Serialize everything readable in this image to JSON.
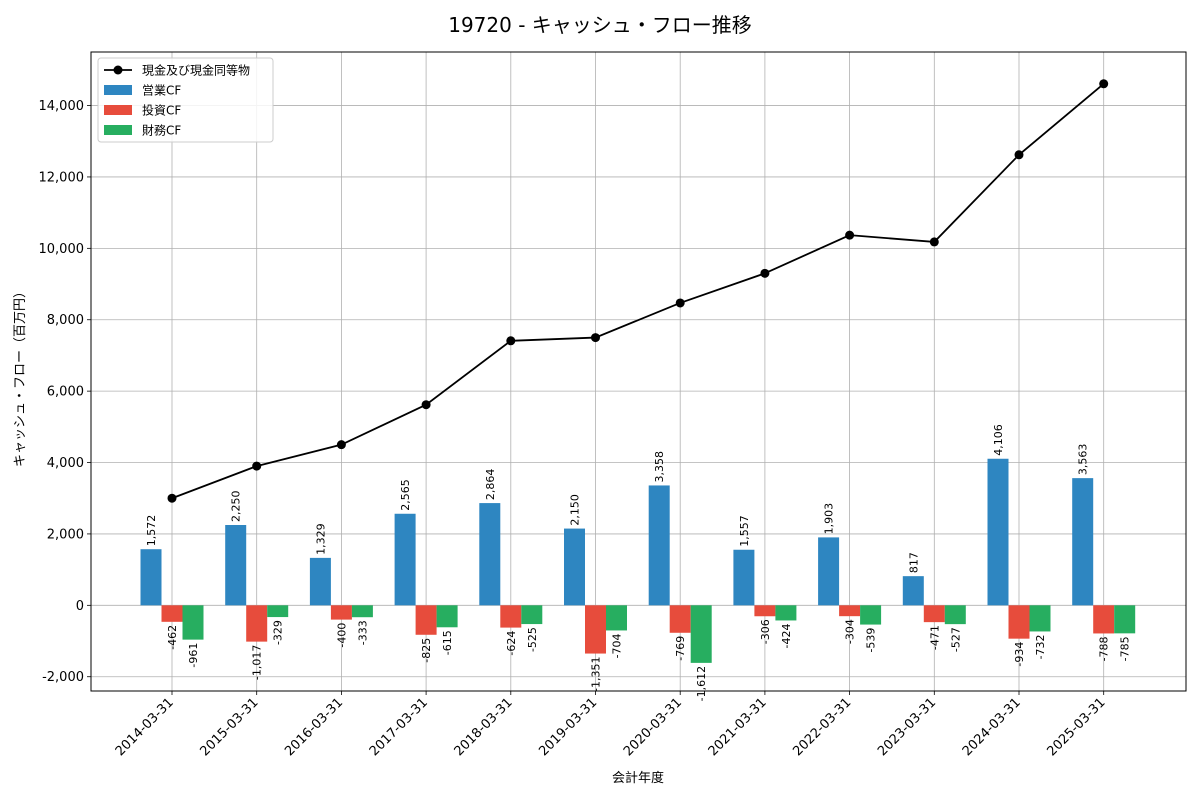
{
  "chart_data": {
    "type": "bar",
    "title": "19720 - キャッシュ・フロー推移",
    "xlabel": "会計年度",
    "ylabel": "キャッシュ・フロー（百万円）",
    "ylim": [
      -2400,
      15500
    ],
    "yticks": [
      -2000,
      0,
      2000,
      4000,
      6000,
      8000,
      10000,
      12000,
      14000
    ],
    "ytick_labels": [
      "-2,000",
      "0",
      "2,000",
      "4,000",
      "6,000",
      "8,000",
      "10,000",
      "12,000",
      "14,000"
    ],
    "grid": true,
    "legend_position": "top-left",
    "categories": [
      "2014-03-31",
      "2015-03-31",
      "2016-03-31",
      "2017-03-31",
      "2018-03-31",
      "2019-03-31",
      "2020-03-31",
      "2021-03-31",
      "2022-03-31",
      "2023-03-31",
      "2024-03-31",
      "2025-03-31"
    ],
    "line_series": {
      "name": "現金及び現金同等物",
      "color": "#000000",
      "values": [
        3000,
        3900,
        4500,
        5620,
        7410,
        7500,
        8470,
        9300,
        10370,
        10180,
        12620,
        14610
      ]
    },
    "series": [
      {
        "name": "営業CF",
        "color": "#2e86c1",
        "values": [
          1572,
          2250,
          1329,
          2565,
          2864,
          2150,
          3358,
          1557,
          1903,
          817,
          4106,
          3563
        ],
        "labels": [
          "1,572",
          "2,250",
          "1,329",
          "2,565",
          "2,864",
          "2,150",
          "3,358",
          "1,557",
          "1,903",
          "817",
          "4,106",
          "3,563"
        ]
      },
      {
        "name": "投資CF",
        "color": "#e74c3c",
        "values": [
          -462,
          -1017,
          -400,
          -825,
          -624,
          -1351,
          -769,
          -306,
          -304,
          -471,
          -934,
          -788
        ],
        "labels": [
          "-462",
          "-1,017",
          "-400",
          "-825",
          "-624",
          "-1,351",
          "-769",
          "-306",
          "-304",
          "-471",
          "-934",
          "-788"
        ]
      },
      {
        "name": "財務CF",
        "color": "#27ae60",
        "values": [
          -961,
          -329,
          -333,
          -615,
          -525,
          -704,
          -1612,
          -424,
          -539,
          -527,
          -732,
          -785
        ],
        "labels": [
          "-961",
          "-329",
          "-333",
          "-615",
          "-525",
          "-704",
          "-1,612",
          "-424",
          "-539",
          "-527",
          "-732",
          "-785"
        ]
      }
    ]
  }
}
